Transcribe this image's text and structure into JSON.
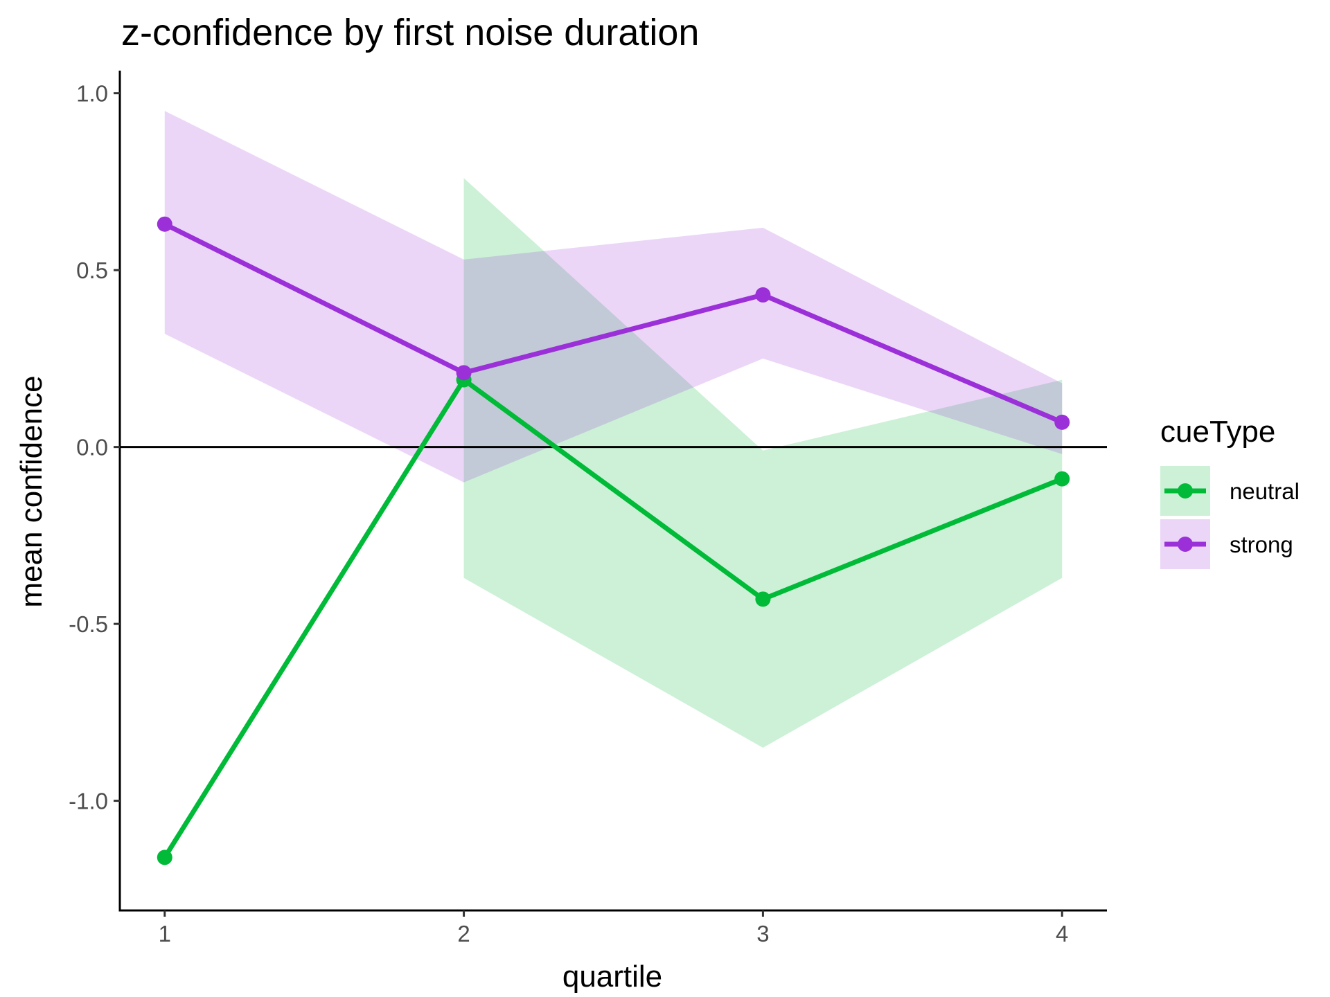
{
  "chart_data": {
    "type": "line",
    "title": "z-confidence by first noise duration",
    "xlabel": "quartile",
    "ylabel": "mean confidence",
    "x": [
      1,
      2,
      3,
      4
    ],
    "x_ticks": [
      "1",
      "2",
      "3",
      "4"
    ],
    "y_ticks": [
      "1.0",
      "0.5",
      "0.0",
      "-0.5",
      "-1.0"
    ],
    "y_tick_values": [
      1.0,
      0.5,
      0.0,
      -0.5,
      -1.0
    ],
    "xlim": [
      0.85,
      4.15
    ],
    "ylim": [
      -1.31,
      1.06
    ],
    "hline": 0,
    "grid": false,
    "legend": {
      "title": "cueType",
      "position": "right"
    },
    "series": [
      {
        "name": "neutral",
        "color": "#00BA38",
        "values": [
          -1.16,
          0.19,
          -0.43,
          -0.09
        ],
        "ribbon_x": [
          2,
          3,
          4
        ],
        "ribbon_upper": [
          0.76,
          -0.01,
          0.19
        ],
        "ribbon_lower": [
          -0.37,
          -0.85,
          -0.37
        ]
      },
      {
        "name": "strong",
        "color": "#9B30D9",
        "values": [
          0.63,
          0.21,
          0.43,
          0.07
        ],
        "ribbon_x": [
          1,
          2,
          3,
          4
        ],
        "ribbon_upper": [
          0.95,
          0.53,
          0.62,
          0.18
        ],
        "ribbon_lower": [
          0.32,
          -0.1,
          0.25,
          -0.02
        ]
      }
    ]
  }
}
